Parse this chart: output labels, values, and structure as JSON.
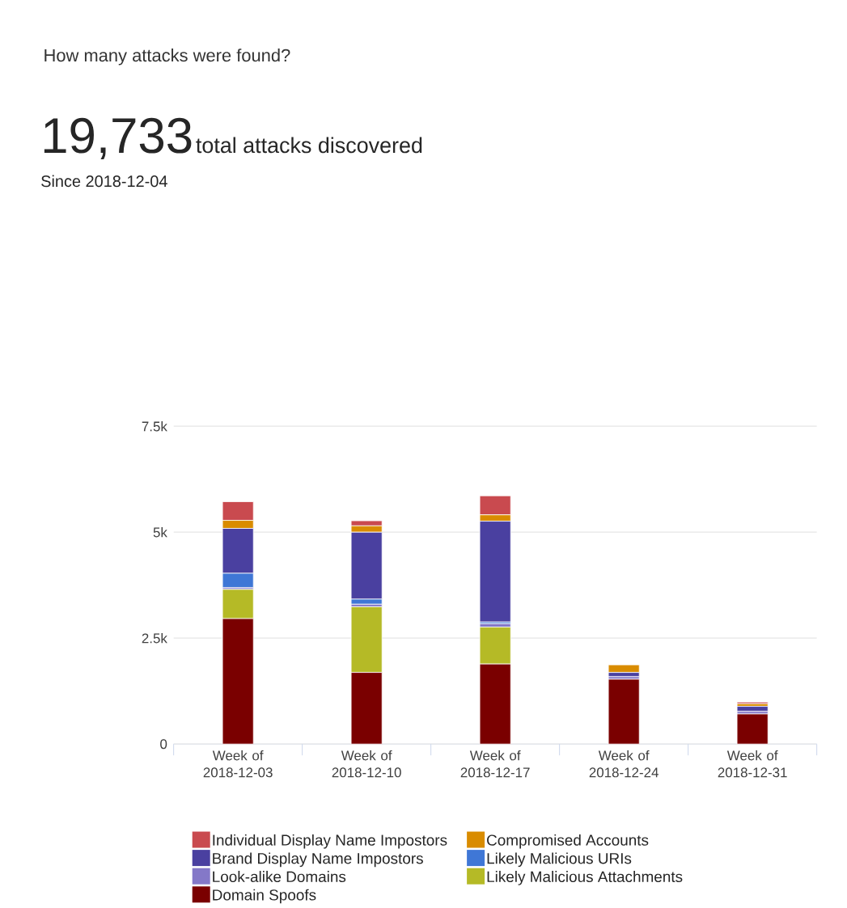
{
  "chart_data": {
    "type": "bar",
    "stacked": true,
    "title": "How many attacks were found?",
    "annotations": [
      "19,733",
      "total attacks discovered",
      "Since 2018-12-04"
    ],
    "categories": [
      "Week of 2018-12-03",
      "Week of 2018-12-10",
      "Week of 2018-12-17",
      "Week of 2018-12-24",
      "Week of 2018-12-31"
    ],
    "series": [
      {
        "name": "Domain Spoofs",
        "color": "#7a0000",
        "values": [
          2960,
          1690,
          1890,
          1530,
          710
        ]
      },
      {
        "name": "Likely Malicious Attachments",
        "color": "#b5ba26",
        "values": [
          690,
          1550,
          870,
          0,
          0
        ]
      },
      {
        "name": "Look-alike Domains",
        "color": "#8478c8",
        "values": [
          40,
          60,
          80,
          60,
          60
        ]
      },
      {
        "name": "Likely Malicious URIs",
        "color": "#3f77d6",
        "values": [
          340,
          120,
          40,
          0,
          0
        ]
      },
      {
        "name": "Brand Display Name Impostors",
        "color": "#4a40a0",
        "values": [
          1060,
          1580,
          2380,
          100,
          120
        ]
      },
      {
        "name": "Compromised Accounts",
        "color": "#d98c00",
        "values": [
          190,
          150,
          150,
          180,
          60
        ]
      },
      {
        "name": "Individual Display Name Impostors",
        "color": "#c94a4f",
        "values": [
          440,
          120,
          450,
          0,
          40
        ]
      }
    ],
    "ylim": [
      0,
      7500
    ],
    "yticks": [
      0,
      {
        "value": 2500,
        "label": "2.5k"
      },
      {
        "value": 5000,
        "label": "5k"
      },
      {
        "value": 7500,
        "label": "7.5k"
      }
    ],
    "grid": "y",
    "legend": "bottom"
  }
}
